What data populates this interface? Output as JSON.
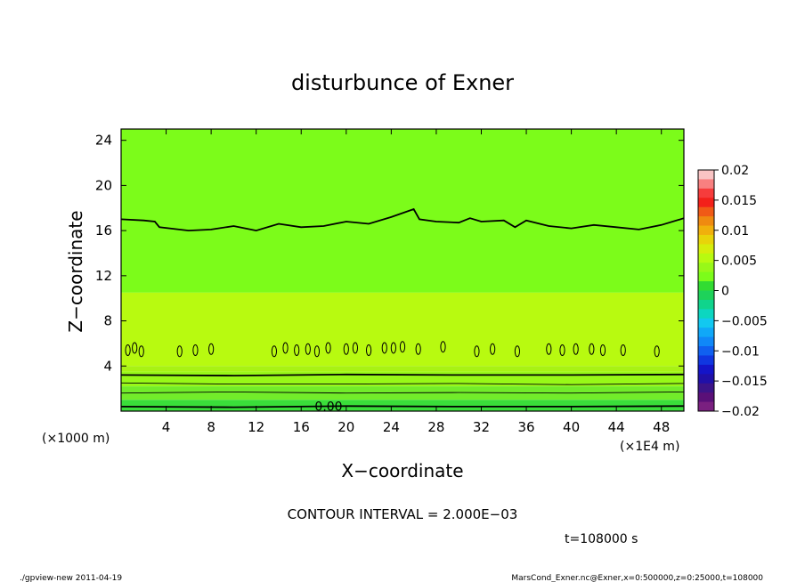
{
  "chart_data": {
    "type": "heatmap",
    "title": "disturbunce of Exner",
    "xlabel": "X−coordinate",
    "ylabel": "Z−coordinate",
    "x_unit": "(×1E4 m)",
    "y_unit": "(×1000 m)",
    "xlim": [
      0,
      50
    ],
    "ylim": [
      0,
      25
    ],
    "x_ticks": [
      4,
      8,
      12,
      16,
      20,
      24,
      28,
      32,
      36,
      40,
      44,
      48
    ],
    "y_ticks": [
      4,
      8,
      12,
      16,
      20,
      24
    ],
    "contour_interval_text": "CONTOUR INTERVAL = 2.000E−03",
    "time_text": "t=108000 s",
    "contour_label": "0.00",
    "colorbar": {
      "ticks": [
        "0.02",
        "0.015",
        "0.01",
        "0.005",
        "0",
        "−0.005",
        "−0.01",
        "−0.015",
        "−0.02"
      ],
      "levels": [
        0.02,
        0.015,
        0.01,
        0.005,
        0,
        -0.005,
        -0.01,
        -0.015,
        -0.02
      ],
      "colors": [
        "#f9c4c4",
        "#f88080",
        "#f63c3c",
        "#f3201a",
        "#f05a16",
        "#ef8a10",
        "#f0b00c",
        "#e8d40a",
        "#d6ee0c",
        "#b8fa10",
        "#98f818",
        "#7cfc1a",
        "#32dc32",
        "#1ed25a",
        "#10d48c",
        "#0cd6c0",
        "#12c8f0",
        "#10a8f8",
        "#1088f8",
        "#1060f0",
        "#1036e0",
        "#1414c8",
        "#2010a8",
        "#3c1488",
        "#5a1078",
        "#7a2080"
      ]
    },
    "fill_bands": [
      {
        "z_range": [
          10.5,
          25
        ],
        "color": "#7cfc1a"
      },
      {
        "z_range": [
          4.0,
          10.5
        ],
        "color": "#b8fa10"
      },
      {
        "z_range": [
          3.5,
          4.0
        ],
        "color": "#a8f214"
      },
      {
        "z_range": [
          2.2,
          3.5
        ],
        "color": "#98f818"
      },
      {
        "z_range": [
          1.0,
          2.2
        ],
        "color": "#72ec2a"
      },
      {
        "z_range": [
          0.0,
          1.0
        ],
        "color": "#3ade3a"
      }
    ],
    "contours": [
      {
        "level_label": "upper",
        "mean_z": 16.6,
        "points": [
          [
            0,
            17.0
          ],
          [
            2,
            16.9
          ],
          [
            3,
            16.8
          ],
          [
            3.4,
            16.3
          ],
          [
            6,
            16.0
          ],
          [
            8,
            16.1
          ],
          [
            10,
            16.4
          ],
          [
            12,
            16.0
          ],
          [
            14,
            16.6
          ],
          [
            16,
            16.3
          ],
          [
            18,
            16.4
          ],
          [
            20,
            16.8
          ],
          [
            22,
            16.6
          ],
          [
            24,
            17.2
          ],
          [
            26,
            17.9
          ],
          [
            26.5,
            17.0
          ],
          [
            28,
            16.8
          ],
          [
            30,
            16.7
          ],
          [
            31,
            17.1
          ],
          [
            32,
            16.8
          ],
          [
            34,
            16.9
          ],
          [
            35,
            16.3
          ],
          [
            36,
            16.9
          ],
          [
            38,
            16.4
          ],
          [
            40,
            16.2
          ],
          [
            42,
            16.5
          ],
          [
            44,
            16.3
          ],
          [
            46,
            16.1
          ],
          [
            48,
            16.5
          ],
          [
            50,
            17.1
          ]
        ]
      },
      {
        "level_label": "thick-3.2",
        "mean_z": 3.2,
        "points": [
          [
            0,
            3.2
          ],
          [
            10,
            3.15
          ],
          [
            20,
            3.25
          ],
          [
            30,
            3.2
          ],
          [
            40,
            3.2
          ],
          [
            50,
            3.25
          ]
        ]
      },
      {
        "level_label": "thin-2.4",
        "mean_z": 2.4,
        "points": [
          [
            0,
            2.5
          ],
          [
            10,
            2.4
          ],
          [
            20,
            2.4
          ],
          [
            30,
            2.45
          ],
          [
            40,
            2.35
          ],
          [
            50,
            2.45
          ]
        ]
      },
      {
        "level_label": "thin-1.6",
        "mean_z": 1.6,
        "points": [
          [
            0,
            1.6
          ],
          [
            10,
            1.7
          ],
          [
            20,
            1.6
          ],
          [
            30,
            1.65
          ],
          [
            40,
            1.6
          ],
          [
            50,
            1.7
          ]
        ]
      },
      {
        "level_label": "zero",
        "mean_z": 0.4,
        "points": [
          [
            0,
            0.4
          ],
          [
            10,
            0.35
          ],
          [
            20,
            0.45
          ],
          [
            30,
            0.4
          ],
          [
            40,
            0.4
          ],
          [
            50,
            0.45
          ]
        ]
      }
    ],
    "small_cells": [
      [
        0.6,
        5.4
      ],
      [
        1.2,
        5.6
      ],
      [
        1.8,
        5.3
      ],
      [
        5.2,
        5.3
      ],
      [
        6.6,
        5.4
      ],
      [
        8.0,
        5.5
      ],
      [
        13.6,
        5.3
      ],
      [
        14.6,
        5.6
      ],
      [
        15.6,
        5.4
      ],
      [
        16.6,
        5.5
      ],
      [
        17.4,
        5.3
      ],
      [
        18.4,
        5.6
      ],
      [
        20.0,
        5.5
      ],
      [
        20.8,
        5.6
      ],
      [
        22.0,
        5.4
      ],
      [
        23.4,
        5.6
      ],
      [
        24.2,
        5.6
      ],
      [
        25.0,
        5.7
      ],
      [
        26.4,
        5.5
      ],
      [
        28.6,
        5.7
      ],
      [
        31.6,
        5.3
      ],
      [
        33.0,
        5.5
      ],
      [
        35.2,
        5.3
      ],
      [
        38.0,
        5.5
      ],
      [
        39.2,
        5.4
      ],
      [
        40.4,
        5.5
      ],
      [
        41.8,
        5.5
      ],
      [
        42.8,
        5.4
      ],
      [
        44.6,
        5.4
      ],
      [
        47.6,
        5.3
      ]
    ],
    "grid": false,
    "legend": "right colorbar"
  },
  "footer": {
    "left": "./gpview-new   2011-04-19",
    "right": "MarsCond_Exner.nc@Exner,x=0:500000,z=0:25000,t=108000"
  }
}
